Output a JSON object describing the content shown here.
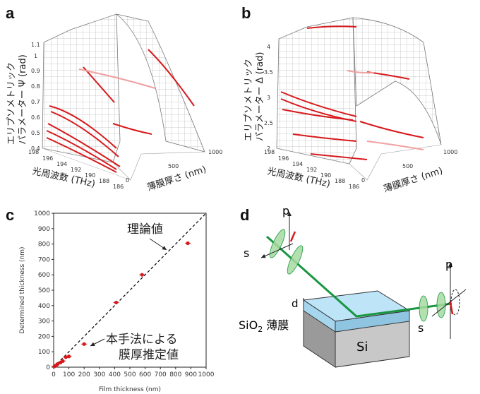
{
  "panels": {
    "a": {
      "label": "a",
      "zlabel_line1": "エリプソメトリック",
      "zlabel_line2": "パラメーター Ψ (rad)",
      "xlabel": "光周波数 (THz)",
      "ylabel": "薄膜厚さ (nm)",
      "ztick_labels": [
        "0.4",
        "0.5",
        "0.6",
        "0.7",
        "0.8",
        "0.9",
        "1",
        "1.1"
      ],
      "freq_ticks": [
        "198",
        "196",
        "194",
        "192",
        "190",
        "188",
        "186"
      ],
      "thick_ticks": [
        "0",
        "500",
        "1000"
      ]
    },
    "b": {
      "label": "b",
      "zlabel_line1": "エリプソメトリック",
      "zlabel_line2": "パラメーター Δ (rad)",
      "xlabel": "光周波数 (THz)",
      "ylabel": "薄膜厚さ (nm)",
      "ztick_labels": [
        "2",
        "2.5",
        "3",
        "3.5",
        "4"
      ],
      "freq_ticks": [
        "198",
        "196",
        "194",
        "192",
        "190",
        "188",
        "186"
      ],
      "thick_ticks": [
        "0",
        "500",
        "1000"
      ]
    },
    "c": {
      "label": "c",
      "annotation_theory": "理論値",
      "annotation_method_line1": "本手法による",
      "annotation_method_line2": "膜厚推定値"
    },
    "d": {
      "label": "d",
      "p_label_in": "p",
      "s_label_in": "s",
      "p_label_out": "p",
      "s_label_out": "s",
      "d_label": "d",
      "film_label_prefix": "SiO",
      "film_label_sub": "2",
      "film_label_suffix": " 薄膜",
      "substrate_label": "Si"
    }
  },
  "chart_data": [
    {
      "type": "scatter",
      "panel": "c",
      "xlabel": "Film thickness (nm)",
      "ylabel": "Determined thickness (nm)",
      "xlim": [
        0,
        1000
      ],
      "ylim": [
        0,
        1000
      ],
      "x_ticks": [
        0,
        100,
        200,
        300,
        400,
        500,
        600,
        700,
        800,
        900,
        1000
      ],
      "y_ticks": [
        0,
        100,
        200,
        300,
        400,
        500,
        600,
        700,
        800,
        900,
        1000
      ],
      "series": [
        {
          "x": [
            5,
            15,
            25,
            45,
            60,
            80,
            100,
            200,
            410,
            580,
            880
          ],
          "y": [
            5,
            10,
            20,
            30,
            40,
            65,
            70,
            150,
            420,
            600,
            805
          ]
        }
      ],
      "reference_line": {
        "x": [
          0,
          1000
        ],
        "y": [
          0,
          1000
        ]
      },
      "colors": {
        "points": "#d7191c",
        "line": "#000000"
      }
    }
  ]
}
